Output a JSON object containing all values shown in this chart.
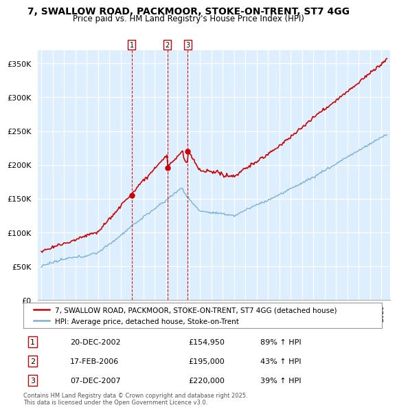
{
  "title": "7, SWALLOW ROAD, PACKMOOR, STOKE-ON-TRENT, ST7 4GG",
  "subtitle": "Price paid vs. HM Land Registry's House Price Index (HPI)",
  "ylim": [
    0,
    370000
  ],
  "yticks": [
    0,
    50000,
    100000,
    150000,
    200000,
    250000,
    300000,
    350000
  ],
  "ytick_labels": [
    "£0",
    "£50K",
    "£100K",
    "£150K",
    "£200K",
    "£250K",
    "£300K",
    "£350K"
  ],
  "sale_color": "#cc0000",
  "hpi_color": "#7bafd4",
  "hpi_fill_color": "#ddeeff",
  "sale_label": "7, SWALLOW ROAD, PACKMOOR, STOKE-ON-TRENT, ST7 4GG (detached house)",
  "hpi_label": "HPI: Average price, detached house, Stoke-on-Trent",
  "transactions": [
    {
      "num": 1,
      "date": "20-DEC-2002",
      "price": 154950,
      "pct": "89%",
      "dir": "↑",
      "x": 2002.97
    },
    {
      "num": 2,
      "date": "17-FEB-2006",
      "price": 195000,
      "pct": "43%",
      "dir": "↑",
      "x": 2006.13
    },
    {
      "num": 3,
      "date": "07-DEC-2007",
      "price": 220000,
      "pct": "39%",
      "dir": "↑",
      "x": 2007.93
    }
  ],
  "footer": "Contains HM Land Registry data © Crown copyright and database right 2025.\nThis data is licensed under the Open Government Licence v3.0.",
  "background_color": "#ffffff",
  "grid_color": "#ccddee"
}
